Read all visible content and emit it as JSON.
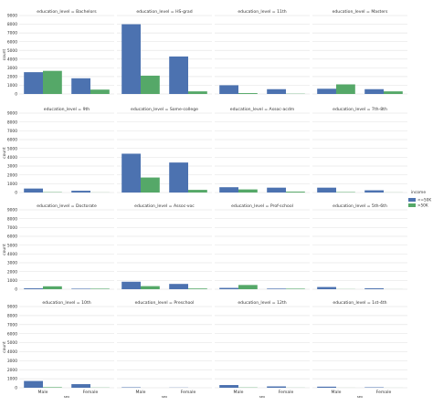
{
  "chart_data": {
    "type": "bar",
    "facet_variable": "education_level",
    "facet_separator": " = ",
    "x_categories": [
      "Male",
      "Female"
    ],
    "xlabel": "sex",
    "ylabel": "count",
    "ylim": [
      0,
      9000
    ],
    "yticks": [
      0,
      1000,
      2000,
      3000,
      4000,
      5000,
      6000,
      7000,
      8000,
      9000
    ],
    "grid": true,
    "legend": {
      "title": "income",
      "position": "right",
      "entries": [
        {
          "label": "<=50K",
          "color": "#4c72b0"
        },
        {
          "label": ">50K",
          "color": "#55a868"
        }
      ]
    },
    "panels": [
      {
        "level": "Bachelors",
        "series": [
          {
            "name": "<=50K",
            "values": [
              2500,
              1800
            ]
          },
          {
            "name": ">50K",
            "values": [
              2650,
              500
            ]
          }
        ]
      },
      {
        "level": "HS-grad",
        "series": [
          {
            "name": "<=50K",
            "values": [
              8000,
              4300
            ]
          },
          {
            "name": ">50K",
            "values": [
              2100,
              300
            ]
          }
        ]
      },
      {
        "level": "11th",
        "series": [
          {
            "name": "<=50K",
            "values": [
              1000,
              550
            ]
          },
          {
            "name": ">50K",
            "values": [
              100,
              30
            ]
          }
        ]
      },
      {
        "level": "Masters",
        "series": [
          {
            "name": "<=50K",
            "values": [
              600,
              550
            ]
          },
          {
            "name": ">50K",
            "values": [
              1100,
              300
            ]
          }
        ]
      },
      {
        "level": "9th",
        "series": [
          {
            "name": "<=50K",
            "values": [
              450,
              200
            ]
          },
          {
            "name": ">50K",
            "values": [
              40,
              10
            ]
          }
        ]
      },
      {
        "level": "Some-college",
        "series": [
          {
            "name": "<=50K",
            "values": [
              4400,
              3400
            ]
          },
          {
            "name": ">50K",
            "values": [
              1700,
              300
            ]
          }
        ]
      },
      {
        "level": "Assoc-acdm",
        "series": [
          {
            "name": "<=50K",
            "values": [
              600,
              550
            ]
          },
          {
            "name": ">50K",
            "values": [
              350,
              100
            ]
          }
        ]
      },
      {
        "level": "7th-8th",
        "series": [
          {
            "name": "<=50K",
            "values": [
              550,
              250
            ]
          },
          {
            "name": ">50K",
            "values": [
              50,
              10
            ]
          }
        ]
      },
      {
        "level": "Doctorate",
        "series": [
          {
            "name": "<=50K",
            "values": [
              100,
              60
            ]
          },
          {
            "name": ">50K",
            "values": [
              330,
              60
            ]
          }
        ]
      },
      {
        "level": "Assoc-voc",
        "series": [
          {
            "name": "<=50K",
            "values": [
              850,
              600
            ]
          },
          {
            "name": ">50K",
            "values": [
              350,
              80
            ]
          }
        ]
      },
      {
        "level": "Prof-school",
        "series": [
          {
            "name": "<=50K",
            "values": [
              150,
              70
            ]
          },
          {
            "name": ">50K",
            "values": [
              480,
              60
            ]
          }
        ]
      },
      {
        "level": "5th-6th",
        "series": [
          {
            "name": "<=50K",
            "values": [
              250,
              100
            ]
          },
          {
            "name": ">50K",
            "values": [
              15,
              5
            ]
          }
        ]
      },
      {
        "level": "10th",
        "series": [
          {
            "name": "<=50K",
            "values": [
              750,
              400
            ]
          },
          {
            "name": ">50K",
            "values": [
              60,
              20
            ]
          }
        ]
      },
      {
        "level": "Preschool",
        "series": [
          {
            "name": "<=50K",
            "values": [
              50,
              20
            ]
          },
          {
            "name": ">50K",
            "values": [
              0,
              0
            ]
          }
        ]
      },
      {
        "level": "12th",
        "series": [
          {
            "name": "<=50K",
            "values": [
              300,
              150
            ]
          },
          {
            "name": ">50K",
            "values": [
              30,
              10
            ]
          }
        ]
      },
      {
        "level": "1st-4th",
        "series": [
          {
            "name": "<=50K",
            "values": [
              120,
              50
            ]
          },
          {
            "name": ">50K",
            "values": [
              5,
              3
            ]
          }
        ]
      }
    ]
  }
}
